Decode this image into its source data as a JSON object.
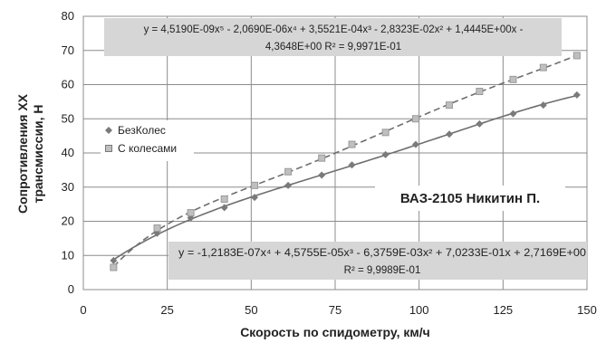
{
  "chart_data": {
    "type": "scatter",
    "xlabel": "Скорость по спидометру, км/ч",
    "ylabel_line1": "Сопротивления ХХ",
    "ylabel_line2": "трансмиссии, Н",
    "xlim": [
      0,
      150
    ],
    "ylim": [
      0,
      80
    ],
    "xticks": [
      0,
      25,
      50,
      75,
      100,
      125,
      150
    ],
    "yticks": [
      0,
      10,
      20,
      30,
      40,
      50,
      60,
      70,
      80
    ],
    "grid": true,
    "legend_placement": "left-middle",
    "annotation": "ВАЗ-2105 Никитин П.",
    "series": [
      {
        "name": "БезКолес",
        "marker": "diamond",
        "color": "#7a7a7a",
        "trendline": "solid",
        "x": [
          9,
          22,
          32,
          42,
          51,
          61,
          71,
          80,
          90,
          99,
          109,
          118,
          128,
          137,
          147
        ],
        "y": [
          8.5,
          16.5,
          21,
          24,
          27,
          30.5,
          33.5,
          36.5,
          39.5,
          42.5,
          45.5,
          48.5,
          51.5,
          54,
          57
        ]
      },
      {
        "name": "С колесами",
        "marker": "square",
        "color": "#9a9a9a",
        "trendline": "dashed",
        "x": [
          9,
          22,
          32,
          42,
          51,
          61,
          71,
          80,
          90,
          99,
          109,
          118,
          128,
          137,
          147
        ],
        "y": [
          6.5,
          18,
          22.5,
          26.5,
          30.5,
          34.5,
          38.5,
          42.5,
          46,
          50,
          54,
          58,
          61.5,
          65,
          68.5
        ]
      }
    ],
    "equations": [
      {
        "series": "С колесами",
        "line1": "y = 4,5190E-09x⁵ - 2,0690E-06x⁴ + 3,5521E-04x³ - 2,8323E-02x² + 1,4445E+00x -",
        "line2": "4,3648E+00  R² = 9,9971E-01"
      },
      {
        "series": "БезКолес",
        "line1": "y = -1,2183E-07x⁴ + 4,5755E-05x³ - 6,3759E-03x² + 7,0233E-01x + 2,7169E+00",
        "line2": "R² = 9,9989E-01"
      }
    ]
  }
}
